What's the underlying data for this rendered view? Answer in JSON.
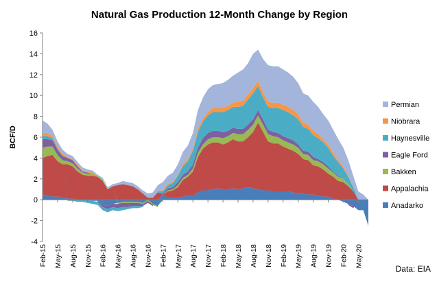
{
  "chart_data": {
    "type": "area",
    "stacked": true,
    "title": "Natural Gas Production 12-Month Change by Region",
    "ylabel": "BCF/D",
    "xlabel": "",
    "source_note": "Data: EIA",
    "ylim": [
      -4,
      16
    ],
    "yticks": [
      -4,
      -2,
      0,
      2,
      4,
      6,
      8,
      10,
      12,
      14,
      16
    ],
    "grid": false,
    "legend_position": "right",
    "x": [
      "Feb-15",
      "Mar-15",
      "Apr-15",
      "May-15",
      "Jun-15",
      "Jul-15",
      "Aug-15",
      "Sep-15",
      "Oct-15",
      "Nov-15",
      "Dec-15",
      "Jan-16",
      "Feb-16",
      "Mar-16",
      "Apr-16",
      "May-16",
      "Jun-16",
      "Jul-16",
      "Aug-16",
      "Sep-16",
      "Oct-16",
      "Nov-16",
      "Dec-16",
      "Jan-17",
      "Feb-17",
      "Mar-17",
      "Apr-17",
      "May-17",
      "Jun-17",
      "Jul-17",
      "Aug-17",
      "Sep-17",
      "Oct-17",
      "Nov-17",
      "Dec-17",
      "Jan-18",
      "Feb-18",
      "Mar-18",
      "Apr-18",
      "May-18",
      "Jun-18",
      "Jul-18",
      "Aug-18",
      "Sep-18",
      "Oct-18",
      "Nov-18",
      "Dec-18",
      "Jan-19",
      "Feb-19",
      "Mar-19",
      "Apr-19",
      "May-19",
      "Jun-19",
      "Jul-19",
      "Aug-19",
      "Sep-19",
      "Oct-19",
      "Nov-19",
      "Dec-19",
      "Jan-20",
      "Feb-20",
      "Mar-20",
      "Apr-20",
      "May-20",
      "Jun-20",
      "Jul-20"
    ],
    "tick_labels": [
      "Feb-15",
      "May-15",
      "Aug-15",
      "Nov-15",
      "Feb-16",
      "May-16",
      "Aug-16",
      "Nov-16",
      "Feb-17",
      "May-17",
      "Aug-17",
      "Nov-17",
      "Feb-18",
      "May-18",
      "Aug-18",
      "Nov-18",
      "Feb-19",
      "May-19",
      "Aug-19",
      "Nov-19",
      "Feb-20",
      "May-20"
    ],
    "series": [
      {
        "name": "Anadarko",
        "color": "#4a7ebb",
        "values": [
          0.5,
          0.4,
          0.3,
          0.3,
          0.2,
          0.1,
          0.1,
          0.0,
          0.0,
          0.0,
          -0.1,
          -0.1,
          -0.5,
          -0.6,
          -0.4,
          -0.3,
          -0.2,
          -0.2,
          -0.2,
          -0.2,
          -0.3,
          0.0,
          -0.4,
          -0.6,
          0.5,
          0.2,
          0.2,
          0.2,
          0.3,
          0.4,
          0.4,
          0.7,
          0.9,
          0.9,
          1.0,
          1.1,
          1.0,
          1.0,
          1.1,
          1.0,
          1.1,
          1.2,
          1.1,
          1.0,
          0.9,
          0.9,
          0.8,
          0.8,
          0.8,
          0.8,
          0.7,
          0.6,
          0.6,
          0.5,
          0.5,
          0.4,
          0.3,
          0.3,
          0.1,
          0.0,
          -0.2,
          -0.4,
          -0.6,
          -1.0,
          -1.0,
          -2.5
        ]
      },
      {
        "name": "Appalachia",
        "color": "#be4b48",
        "values": [
          3.5,
          3.8,
          4.0,
          3.4,
          3.2,
          3.3,
          3.1,
          2.7,
          2.4,
          2.3,
          2.3,
          2.2,
          1.8,
          1.0,
          1.3,
          1.4,
          1.5,
          1.4,
          1.3,
          1.0,
          0.6,
          0.2,
          0.2,
          0.7,
          0.0,
          0.6,
          0.7,
          1.0,
          1.6,
          1.8,
          2.3,
          3.4,
          4.0,
          4.4,
          4.5,
          4.4,
          4.3,
          4.5,
          4.7,
          4.6,
          4.5,
          4.8,
          5.4,
          6.4,
          5.6,
          4.7,
          4.6,
          4.6,
          4.3,
          4.1,
          4.0,
          3.8,
          3.3,
          3.3,
          2.8,
          2.8,
          2.6,
          2.2,
          2.1,
          1.8,
          1.7,
          1.3,
          0.8,
          0.0,
          0.0,
          0.0
        ]
      },
      {
        "name": "Bakken",
        "color": "#98b954",
        "values": [
          1.0,
          0.9,
          0.8,
          0.6,
          0.4,
          0.3,
          0.3,
          0.3,
          0.2,
          0.2,
          0.2,
          0.1,
          0.1,
          0.0,
          0.0,
          -0.1,
          -0.1,
          -0.1,
          -0.1,
          -0.1,
          -0.1,
          -0.1,
          -0.1,
          -0.1,
          0.0,
          0.1,
          0.1,
          0.2,
          0.2,
          0.2,
          0.3,
          0.4,
          0.4,
          0.5,
          0.5,
          0.5,
          0.6,
          0.6,
          0.6,
          0.7,
          0.7,
          0.7,
          0.7,
          0.7,
          0.7,
          0.7,
          0.7,
          0.6,
          0.6,
          0.6,
          0.6,
          0.6,
          0.5,
          0.5,
          0.5,
          0.5,
          0.5,
          0.5,
          0.4,
          0.4,
          0.3,
          0.2,
          0.0,
          0.0,
          0.0,
          0.0
        ]
      },
      {
        "name": "Eagle Ford",
        "color": "#7d60a0",
        "values": [
          0.8,
          0.7,
          0.6,
          0.5,
          0.4,
          0.3,
          0.3,
          0.2,
          0.1,
          0.1,
          0.0,
          -0.1,
          -0.2,
          -0.3,
          -0.3,
          -0.4,
          -0.4,
          -0.4,
          -0.3,
          -0.3,
          -0.2,
          -0.2,
          -0.1,
          0.0,
          0.1,
          0.2,
          0.2,
          0.3,
          0.3,
          0.3,
          0.4,
          0.5,
          0.6,
          0.6,
          0.6,
          0.6,
          0.6,
          0.5,
          0.5,
          0.5,
          0.5,
          0.5,
          0.5,
          0.5,
          0.5,
          0.4,
          0.4,
          0.4,
          0.4,
          0.4,
          0.4,
          0.3,
          0.3,
          0.3,
          0.3,
          0.2,
          0.2,
          0.2,
          0.1,
          0.1,
          0.0,
          -0.1,
          -0.2,
          0.0,
          0.0,
          0.0
        ]
      },
      {
        "name": "Haynesville",
        "color": "#4bacc6",
        "values": [
          0.3,
          0.3,
          0.2,
          0.1,
          0.0,
          -0.1,
          -0.1,
          -0.2,
          -0.2,
          -0.3,
          -0.3,
          -0.3,
          -0.3,
          -0.3,
          -0.3,
          -0.3,
          -0.3,
          -0.2,
          -0.2,
          -0.2,
          -0.1,
          0.0,
          0.0,
          0.1,
          0.2,
          0.3,
          0.4,
          0.6,
          0.8,
          1.0,
          1.3,
          1.5,
          1.6,
          1.7,
          1.8,
          1.8,
          1.9,
          2.0,
          2.0,
          2.1,
          2.2,
          2.4,
          2.5,
          2.3,
          2.1,
          2.2,
          2.3,
          2.4,
          2.5,
          2.5,
          2.4,
          2.4,
          2.3,
          2.2,
          2.1,
          2.0,
          1.9,
          1.8,
          1.5,
          1.3,
          1.0,
          0.7,
          0.4,
          0.0,
          0.0,
          0.0
        ]
      },
      {
        "name": "Niobrara",
        "color": "#f79646",
        "values": [
          0.3,
          0.3,
          0.2,
          0.2,
          0.2,
          0.1,
          0.1,
          0.1,
          0.1,
          0.1,
          0.1,
          0.0,
          0.0,
          0.0,
          0.0,
          0.0,
          0.0,
          0.0,
          0.0,
          0.0,
          0.0,
          0.0,
          0.0,
          0.0,
          0.1,
          0.1,
          0.1,
          0.1,
          0.2,
          0.2,
          0.2,
          0.3,
          0.3,
          0.3,
          0.4,
          0.4,
          0.4,
          0.4,
          0.4,
          0.5,
          0.5,
          0.5,
          0.5,
          0.5,
          0.5,
          0.5,
          0.5,
          0.5,
          0.5,
          0.5,
          0.5,
          0.5,
          0.4,
          0.4,
          0.4,
          0.4,
          0.3,
          0.3,
          0.3,
          0.2,
          0.2,
          0.1,
          0.0,
          0.0,
          0.0,
          0.0
        ]
      },
      {
        "name": "Permian",
        "color": "#a3b5da",
        "values": [
          1.2,
          0.9,
          0.6,
          0.5,
          0.4,
          0.3,
          0.3,
          0.3,
          0.3,
          0.2,
          0.2,
          0.1,
          0.2,
          0.2,
          0.2,
          0.2,
          0.3,
          0.3,
          0.3,
          0.3,
          0.3,
          0.4,
          0.5,
          0.6,
          0.8,
          0.8,
          0.9,
          1.0,
          1.2,
          1.3,
          1.5,
          1.8,
          2.0,
          2.2,
          2.2,
          2.3,
          2.4,
          2.5,
          2.6,
          2.8,
          3.0,
          3.0,
          3.3,
          3.0,
          3.2,
          3.5,
          3.5,
          3.5,
          3.4,
          3.3,
          3.2,
          3.0,
          2.8,
          2.8,
          2.8,
          2.6,
          2.4,
          2.3,
          2.2,
          2.0,
          1.8,
          1.5,
          1.1,
          0.8,
          0.5,
          0.0
        ]
      }
    ],
    "legend_order": [
      "Permian",
      "Niobrara",
      "Haynesville",
      "Eagle Ford",
      "Bakken",
      "Appalachia",
      "Anadarko"
    ]
  }
}
